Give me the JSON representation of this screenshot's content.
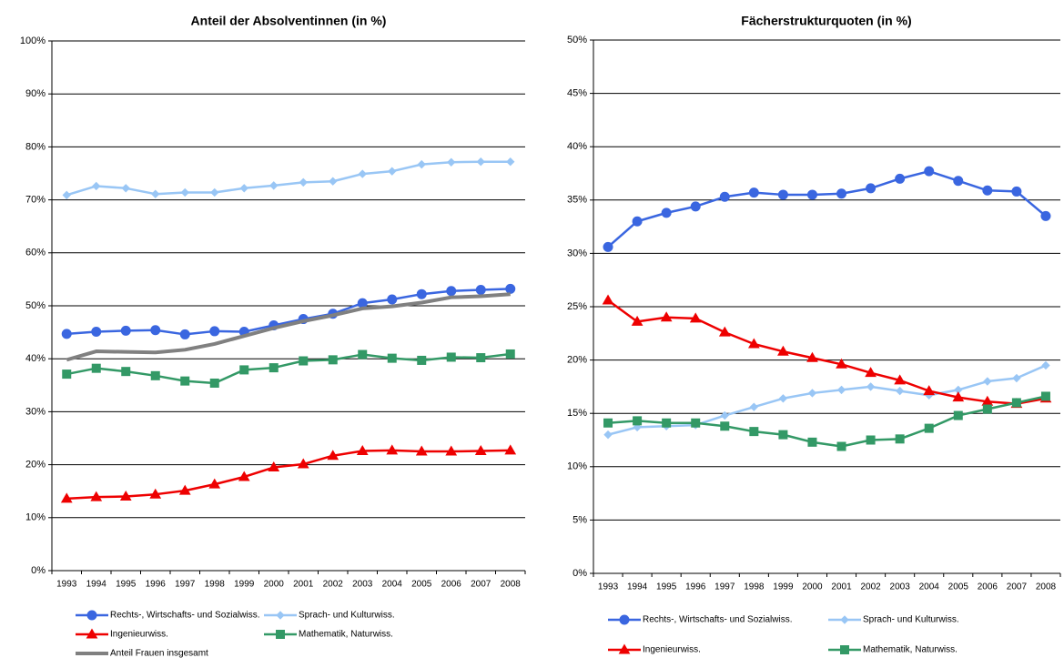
{
  "chart_data": [
    {
      "type": "line",
      "title": "Anteil der Absolventinnen (in %)",
      "categories": [
        "1993",
        "1994",
        "1995",
        "1996",
        "1997",
        "1998",
        "1999",
        "2000",
        "2001",
        "2002",
        "2003",
        "2004",
        "2005",
        "2006",
        "2007",
        "2008"
      ],
      "ylim": [
        0,
        100
      ],
      "yticks": [
        {
          "value": 0,
          "label": "0%"
        },
        {
          "value": 10,
          "label": "10%"
        },
        {
          "value": 20,
          "label": "20%"
        },
        {
          "value": 30,
          "label": "30%"
        },
        {
          "value": 40,
          "label": "40%"
        },
        {
          "value": 50,
          "label": "50%"
        },
        {
          "value": 60,
          "label": "60%"
        },
        {
          "value": 70,
          "label": "70%"
        },
        {
          "value": 80,
          "label": "80%"
        },
        {
          "value": 90,
          "label": "90%"
        },
        {
          "value": 100,
          "label": "100%"
        }
      ],
      "grid": true,
      "series": [
        {
          "name": "Rechts-, Wirtschafts- und Sozialwiss.",
          "color": "#3a66e0",
          "marker": "circle",
          "values": [
            44.7,
            45.1,
            45.3,
            45.4,
            44.6,
            45.2,
            45.1,
            46.3,
            47.5,
            48.5,
            50.5,
            51.2,
            52.2,
            52.8,
            53.0,
            53.2
          ]
        },
        {
          "name": "Sprach- und Kulturwiss.",
          "color": "#99c6f5",
          "marker": "diamond",
          "values": [
            70.9,
            72.6,
            72.2,
            71.1,
            71.4,
            71.4,
            72.2,
            72.7,
            73.3,
            73.5,
            74.9,
            75.4,
            76.7,
            77.1,
            77.2,
            77.2
          ]
        },
        {
          "name": "Ingenieurwiss.",
          "color": "#ee0000",
          "marker": "triangle",
          "values": [
            13.6,
            13.9,
            14.0,
            14.4,
            15.1,
            16.3,
            17.7,
            19.5,
            20.1,
            21.7,
            22.6,
            22.7,
            22.5,
            22.5,
            22.6,
            22.7
          ]
        },
        {
          "name": "Mathematik, Naturwiss.",
          "color": "#339966",
          "marker": "square",
          "values": [
            37.1,
            38.2,
            37.6,
            36.8,
            35.8,
            35.4,
            37.9,
            38.3,
            39.6,
            39.8,
            40.8,
            40.1,
            39.7,
            40.3,
            40.2,
            40.9
          ]
        },
        {
          "name": "Anteil Frauen insgesamt",
          "color": "#808080",
          "marker": "none",
          "values": [
            39.8,
            41.4,
            41.3,
            41.2,
            41.7,
            42.8,
            44.3,
            45.8,
            47.1,
            48.2,
            49.5,
            49.9,
            50.6,
            51.6,
            51.8,
            52.2
          ]
        }
      ]
    },
    {
      "type": "line",
      "title": "Fächerstrukturquoten (in %)",
      "categories": [
        "1993",
        "1994",
        "1995",
        "1996",
        "1997",
        "1998",
        "1999",
        "2000",
        "2001",
        "2002",
        "2003",
        "2004",
        "2005",
        "2006",
        "2007",
        "2008"
      ],
      "ylim": [
        0,
        50
      ],
      "yticks": [
        {
          "value": 0,
          "label": "0%"
        },
        {
          "value": 5,
          "label": "5%"
        },
        {
          "value": 10,
          "label": "10%"
        },
        {
          "value": 15,
          "label": "15%"
        },
        {
          "value": 20,
          "label": "20%"
        },
        {
          "value": 25,
          "label": "25%"
        },
        {
          "value": 30,
          "label": "30%"
        },
        {
          "value": 35,
          "label": "35%"
        },
        {
          "value": 40,
          "label": "40%"
        },
        {
          "value": 45,
          "label": "45%"
        },
        {
          "value": 50,
          "label": "50%"
        }
      ],
      "grid": true,
      "series": [
        {
          "name": "Rechts-, Wirtschafts- und Sozialwiss.",
          "color": "#3a66e0",
          "marker": "circle",
          "values": [
            30.6,
            33.0,
            33.8,
            34.4,
            35.3,
            35.7,
            35.5,
            35.5,
            35.6,
            36.1,
            37.0,
            37.7,
            36.8,
            35.9,
            35.8,
            33.5
          ]
        },
        {
          "name": "Sprach- und Kulturwiss.",
          "color": "#99c6f5",
          "marker": "diamond",
          "values": [
            13.0,
            13.7,
            13.8,
            13.9,
            14.8,
            15.6,
            16.4,
            16.9,
            17.2,
            17.5,
            17.1,
            16.7,
            17.2,
            18.0,
            18.3,
            19.5
          ]
        },
        {
          "name": "Ingenieurwiss.",
          "color": "#ee0000",
          "marker": "triangle",
          "values": [
            25.6,
            23.6,
            24.0,
            23.9,
            22.6,
            21.5,
            20.8,
            20.2,
            19.6,
            18.8,
            18.1,
            17.1,
            16.5,
            16.1,
            15.9,
            16.4
          ]
        },
        {
          "name": "Mathematik, Naturwiss.",
          "color": "#339966",
          "marker": "square",
          "values": [
            14.1,
            14.3,
            14.1,
            14.1,
            13.8,
            13.3,
            13.0,
            12.3,
            11.9,
            12.5,
            12.6,
            13.6,
            14.8,
            15.4,
            16.0,
            16.6
          ]
        }
      ]
    }
  ]
}
